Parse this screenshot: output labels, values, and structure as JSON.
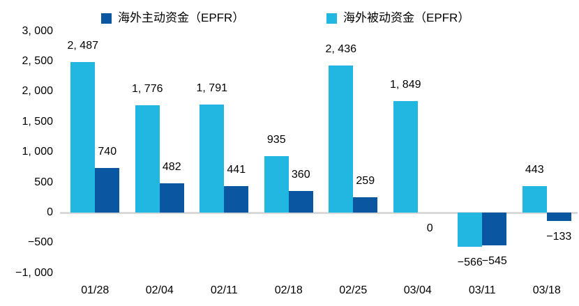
{
  "chart_data": {
    "type": "bar",
    "title": "",
    "xlabel": "",
    "ylabel": "",
    "categories": [
      "01/28",
      "02/04",
      "02/11",
      "02/18",
      "02/25",
      "03/04",
      "03/11",
      "03/18"
    ],
    "series": [
      {
        "name": "海外主动资金（EPFR）",
        "color": "#0A56A0",
        "column": 1,
        "values": [
          740,
          482,
          441,
          360,
          259,
          0,
          -545,
          -133
        ],
        "labels": [
          "740",
          "482",
          "441",
          "360",
          "259",
          "0",
          "−545",
          "−133"
        ]
      },
      {
        "name": "海外被动资金（EPFR）",
        "color": "#22B7E0",
        "column": 0,
        "values": [
          2487,
          1776,
          1791,
          935,
          2436,
          1849,
          -566,
          443
        ],
        "labels": [
          "2, 487",
          "1, 776",
          "1, 791",
          "935",
          "2, 436",
          "1, 849",
          "−566",
          "443"
        ]
      }
    ],
    "ylim": [
      -1000,
      3000
    ],
    "ytick_step": 500,
    "yticks": [
      {
        "value": 3000,
        "label": "3, 000"
      },
      {
        "value": 2500,
        "label": "2, 500"
      },
      {
        "value": 2000,
        "label": "2, 000"
      },
      {
        "value": 1500,
        "label": "1, 500"
      },
      {
        "value": 1000,
        "label": "1, 000"
      },
      {
        "value": 500,
        "label": "500"
      },
      {
        "value": 0,
        "label": "0"
      },
      {
        "value": -500,
        "label": "−500"
      },
      {
        "value": -1000,
        "label": "−1, 000"
      }
    ],
    "legend_position": "top",
    "grid": false,
    "axis_line_color": "#D9D9D9",
    "text_color": "#000000",
    "background": "#FFFFFF"
  }
}
